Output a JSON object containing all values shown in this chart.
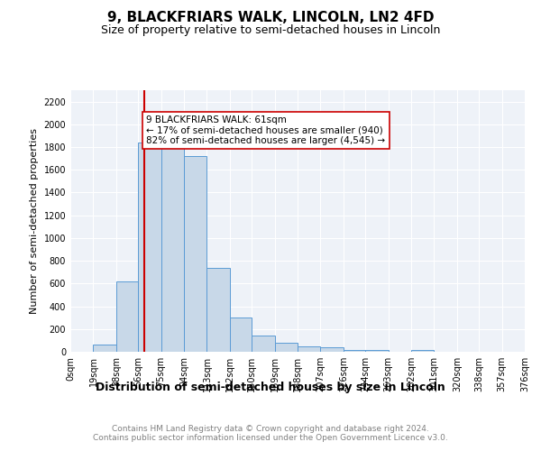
{
  "title": "9, BLACKFRIARS WALK, LINCOLN, LN2 4FD",
  "subtitle": "Size of property relative to semi-detached houses in Lincoln",
  "xlabel": "Distribution of semi-detached houses by size in Lincoln",
  "ylabel": "Number of semi-detached properties",
  "bar_color": "#c8d8e8",
  "bar_edge_color": "#5b9bd5",
  "background_color": "#eef2f8",
  "grid_color": "#ffffff",
  "annotation_line_color": "#cc0000",
  "annotation_box_edge_color": "#cc0000",
  "annotation_text": "9 BLACKFRIARS WALK: 61sqm\n← 17% of semi-detached houses are smaller (940)\n82% of semi-detached houses are larger (4,545) →",
  "annotation_fontsize": 7.5,
  "property_size": 61,
  "bin_edges": [
    0,
    19,
    38,
    56,
    75,
    94,
    113,
    132,
    150,
    169,
    188,
    207,
    226,
    244,
    263,
    282,
    301,
    320,
    338,
    357,
    376
  ],
  "bar_heights": [
    0,
    60,
    620,
    1840,
    1840,
    1720,
    740,
    300,
    140,
    80,
    50,
    40,
    15,
    15,
    0,
    15,
    0,
    0,
    0,
    0
  ],
  "ylim": [
    0,
    2300
  ],
  "yticks": [
    0,
    200,
    400,
    600,
    800,
    1000,
    1200,
    1400,
    1600,
    1800,
    2000,
    2200
  ],
  "footer": "Contains HM Land Registry data © Crown copyright and database right 2024.\nContains public sector information licensed under the Open Government Licence v3.0.",
  "title_fontsize": 11,
  "subtitle_fontsize": 9,
  "xlabel_fontsize": 9,
  "ylabel_fontsize": 8,
  "tick_fontsize": 7,
  "footer_fontsize": 6.5
}
